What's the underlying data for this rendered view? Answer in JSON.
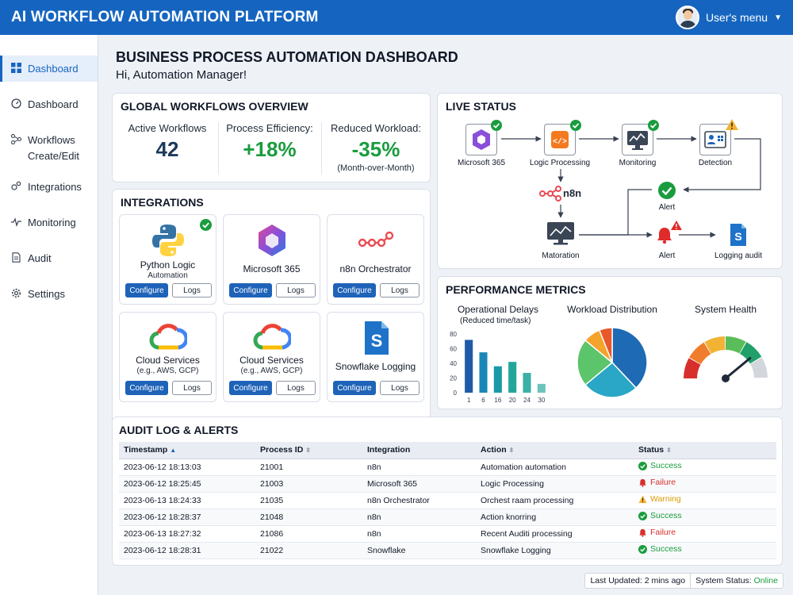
{
  "app": {
    "title": "AI WORKFLOW AUTOMATION PLATFORM",
    "user_menu": "User's menu"
  },
  "sidebar": {
    "items": [
      {
        "label": "Dashboard",
        "icon": "grid-icon",
        "active": true
      },
      {
        "label": "Dashboard",
        "icon": "gauge-icon"
      },
      {
        "label": "Workflows",
        "sub": "Create/Edit",
        "icon": "workflow-icon"
      },
      {
        "label": "Integrations",
        "icon": "integrations-icon"
      },
      {
        "label": "Monitoring",
        "icon": "pulse-icon"
      },
      {
        "label": "Audit",
        "icon": "document-icon"
      },
      {
        "label": "Settings",
        "icon": "gear-icon"
      }
    ]
  },
  "page": {
    "title": "BUSINESS PROCESS AUTOMATION DASHBOARD",
    "greeting": "Hi, Automation Manager!"
  },
  "overview": {
    "title": "GLOBAL WORKFLOWS OVERVIEW",
    "kpis": [
      {
        "label": "Active Workflows",
        "value": "42",
        "color": "#1b3a5c"
      },
      {
        "label": "Process Efficiency:",
        "value": "+18%",
        "color": "#1a9c3e"
      },
      {
        "label": "Reduced Workload:",
        "value": "-35%",
        "note": "(Month-over-Month)",
        "color": "#1a9c3e"
      }
    ]
  },
  "integrations": {
    "title": "INTEGRATIONS",
    "configure_label": "Configure",
    "logs_label": "Logs",
    "tiles": [
      {
        "name": "Python Logic",
        "sub": "Automation",
        "icon": "python-icon",
        "connected": true
      },
      {
        "name": "Microsoft 365",
        "sub": "",
        "icon": "microsoft-365-icon"
      },
      {
        "name": "n8n Orchestrator",
        "sub": "",
        "icon": "n8n-icon"
      },
      {
        "name": "Cloud Services",
        "sub": "(e.g., AWS, GCP)",
        "icon": "google-cloud-icon"
      },
      {
        "name": "Cloud Services",
        "sub": "(e.g., AWS, GCP)",
        "icon": "google-cloud-icon"
      },
      {
        "name": "Snowflake Logging",
        "sub": "",
        "icon": "snowflake-doc-icon"
      }
    ]
  },
  "live_status": {
    "title": "LIVE STATUS",
    "nodes": {
      "m365": "Microsoft 365",
      "logic": "Logic Processing",
      "monitoring": "Monitoring",
      "detection": "Detection",
      "n8n": "n8n",
      "alert_ok": "Alert",
      "matoration": "Matoration",
      "alert_fail": "Alert",
      "logging": "Logging audit"
    }
  },
  "performance": {
    "title": "PERFORMANCE METRICS",
    "delays_title": "Operational Delays",
    "delays_sub": "(Reduced time/task)",
    "distribution_title": "Workload Distribution",
    "health_title": "System Health"
  },
  "chart_data": [
    {
      "type": "bar",
      "title": "Operational Delays",
      "subtitle": "(Reduced time/task)",
      "categories": [
        "1",
        "6",
        "16",
        "20",
        "24",
        "30"
      ],
      "values": [
        72,
        55,
        36,
        42,
        27,
        12
      ],
      "yticks": [
        0,
        20,
        40,
        60,
        80
      ],
      "ylim": [
        0,
        80
      ],
      "colors": [
        "#1e5aa8",
        "#1a86b8",
        "#1a9aa8",
        "#22a69a",
        "#3bb1a6",
        "#6cc3bc"
      ]
    },
    {
      "type": "pie",
      "title": "Workload Distribution",
      "values": [
        38,
        26,
        22,
        8,
        6
      ],
      "colors": [
        "#1e6ab5",
        "#2aa6c6",
        "#5cc46a",
        "#f4a32b",
        "#e8582a"
      ]
    },
    {
      "type": "gauge",
      "title": "System Health",
      "value": 0.78,
      "segments": [
        "#d7302c",
        "#ef7d2b",
        "#f2b233",
        "#5bbd59",
        "#22a06b",
        "#d3d7dc"
      ]
    }
  ],
  "audit": {
    "title": "AUDIT LOG & ALERTS",
    "columns": [
      "Timestamp",
      "Process ID",
      "Integration",
      "Action",
      "Status"
    ],
    "rows": [
      {
        "timestamp": "2023-06-12 18:13:03",
        "pid": "21001",
        "integration": "n8n",
        "action": "Automation automation",
        "status": "Success",
        "kind": "success"
      },
      {
        "timestamp": "2023-06-12 18:25:45",
        "pid": "21003",
        "integration": "Microsoft 365",
        "action": "Logic Processing",
        "status": "Failure",
        "kind": "failure"
      },
      {
        "timestamp": "2023-06-13 18:24:33",
        "pid": "21035",
        "integration": "n8n Orchestrator",
        "action": "Orchest raam processing",
        "status": "Warning",
        "kind": "warning"
      },
      {
        "timestamp": "2023-06-12 18:28:37",
        "pid": "21048",
        "integration": "n8n",
        "action": "Action knorring",
        "status": "Success",
        "kind": "success"
      },
      {
        "timestamp": "2023-06-13 18:27:32",
        "pid": "21086",
        "integration": "n8n",
        "action": "Recent Auditi processing",
        "status": "Failure",
        "kind": "failure"
      },
      {
        "timestamp": "2023-06-12 18:28:31",
        "pid": "21022",
        "integration": "Snowflake",
        "action": "Snowflake Logging",
        "status": "Success",
        "kind": "success"
      }
    ],
    "status_colors": {
      "success": "#1a9c3e",
      "failure": "#d7302c",
      "warning": "#d99a00"
    }
  },
  "footer": {
    "last_updated": "Last Updated: 2 mins ago",
    "system_status_label": "System Status:",
    "system_status_value": "Online"
  }
}
